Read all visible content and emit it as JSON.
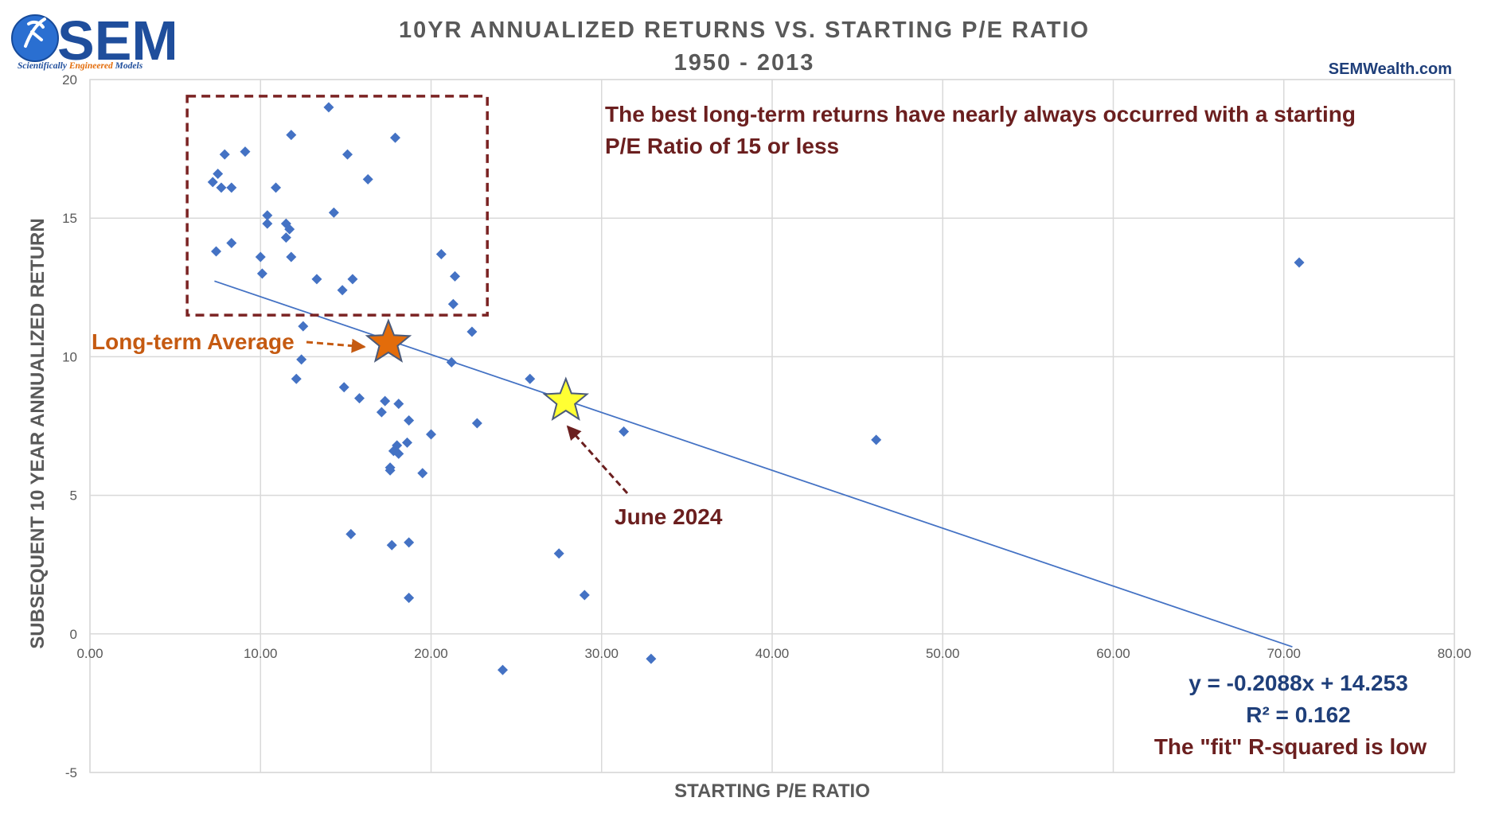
{
  "logo": {
    "brand": "SEM",
    "tagline_1": "Scientifically ",
    "tagline_2": "Engineered",
    "tagline_3": " Models"
  },
  "website": "SEMWealth.com",
  "colors": {
    "points": "#4472c4",
    "trendline": "#4472c4",
    "box": "#7b2323",
    "annotation_dark": "#6b1f1f",
    "annotation_orange": "#c55a11",
    "equation": "#1f3f7a",
    "star_orange": "#e36c0a",
    "star_yellow": "#ffff33",
    "grid": "#d9d9d9"
  },
  "chart_data": {
    "type": "scatter",
    "title": "10YR ANNUALIZED RETURNS VS. STARTING P/E RATIO",
    "subtitle": "1950 - 2013",
    "xlabel": "STARTING P/E RATIO",
    "ylabel": "SUBSEQUENT 10 YEAR ANNUALIZED RETURN",
    "xlim": [
      0,
      80
    ],
    "ylim": [
      -5,
      20
    ],
    "x_ticks": [
      0,
      10,
      20,
      30,
      40,
      50,
      60,
      70,
      80
    ],
    "x_tick_labels": [
      "0.00",
      "10.00",
      "20.00",
      "30.00",
      "40.00",
      "50.00",
      "60.00",
      "70.00",
      "80.00"
    ],
    "y_ticks": [
      -5,
      0,
      5,
      10,
      15,
      20
    ],
    "y_tick_labels": [
      "-5",
      "0",
      "5",
      "10",
      "15",
      "20"
    ],
    "grid": true,
    "points": [
      {
        "x": 7.2,
        "y": 16.3
      },
      {
        "x": 7.5,
        "y": 16.6
      },
      {
        "x": 7.7,
        "y": 16.1
      },
      {
        "x": 7.9,
        "y": 17.3
      },
      {
        "x": 8.3,
        "y": 16.1
      },
      {
        "x": 9.1,
        "y": 17.4
      },
      {
        "x": 7.4,
        "y": 13.8
      },
      {
        "x": 8.3,
        "y": 14.1
      },
      {
        "x": 10.0,
        "y": 13.6
      },
      {
        "x": 10.1,
        "y": 13.0
      },
      {
        "x": 10.4,
        "y": 15.1
      },
      {
        "x": 10.4,
        "y": 14.8
      },
      {
        "x": 10.9,
        "y": 16.1
      },
      {
        "x": 11.5,
        "y": 14.8
      },
      {
        "x": 11.7,
        "y": 14.6
      },
      {
        "x": 11.5,
        "y": 14.3
      },
      {
        "x": 11.8,
        "y": 13.6
      },
      {
        "x": 11.8,
        "y": 18.0
      },
      {
        "x": 13.3,
        "y": 12.8
      },
      {
        "x": 14.0,
        "y": 19.0
      },
      {
        "x": 14.3,
        "y": 15.2
      },
      {
        "x": 15.1,
        "y": 17.3
      },
      {
        "x": 15.4,
        "y": 12.8
      },
      {
        "x": 14.8,
        "y": 12.4
      },
      {
        "x": 16.3,
        "y": 16.4
      },
      {
        "x": 17.9,
        "y": 17.9
      },
      {
        "x": 20.6,
        "y": 13.7
      },
      {
        "x": 21.4,
        "y": 12.9
      },
      {
        "x": 21.3,
        "y": 11.9
      },
      {
        "x": 22.4,
        "y": 10.9
      },
      {
        "x": 12.5,
        "y": 11.1
      },
      {
        "x": 12.4,
        "y": 9.9
      },
      {
        "x": 12.1,
        "y": 9.2
      },
      {
        "x": 14.9,
        "y": 8.9
      },
      {
        "x": 15.8,
        "y": 8.5
      },
      {
        "x": 17.3,
        "y": 8.4
      },
      {
        "x": 17.1,
        "y": 8.0
      },
      {
        "x": 18.1,
        "y": 8.3
      },
      {
        "x": 18.7,
        "y": 7.7
      },
      {
        "x": 21.2,
        "y": 9.8
      },
      {
        "x": 22.7,
        "y": 7.6
      },
      {
        "x": 20.0,
        "y": 7.2
      },
      {
        "x": 18.6,
        "y": 6.9
      },
      {
        "x": 18.0,
        "y": 6.8
      },
      {
        "x": 17.8,
        "y": 6.6
      },
      {
        "x": 18.1,
        "y": 6.5
      },
      {
        "x": 17.6,
        "y": 5.9
      },
      {
        "x": 17.6,
        "y": 6.0
      },
      {
        "x": 19.5,
        "y": 5.8
      },
      {
        "x": 15.3,
        "y": 3.6
      },
      {
        "x": 17.7,
        "y": 3.2
      },
      {
        "x": 18.7,
        "y": 3.3
      },
      {
        "x": 18.7,
        "y": 1.3
      },
      {
        "x": 25.8,
        "y": 9.2
      },
      {
        "x": 27.5,
        "y": 2.9
      },
      {
        "x": 29.0,
        "y": 1.4
      },
      {
        "x": 31.3,
        "y": 7.3
      },
      {
        "x": 32.9,
        "y": -0.9
      },
      {
        "x": 24.2,
        "y": -1.3
      },
      {
        "x": 46.1,
        "y": 7.0
      },
      {
        "x": 70.9,
        "y": 13.4
      }
    ],
    "trendline": {
      "slope": -0.2088,
      "intercept": 14.253,
      "x_start": 7.3,
      "x_end": 70.5
    },
    "highlight_box": {
      "x0": 5.7,
      "x1": 23.3,
      "y0": 11.5,
      "y1": 19.4
    },
    "markers": [
      {
        "name": "Long-term Average",
        "x": 17.5,
        "y": 10.5
      },
      {
        "name": "June 2024",
        "x": 27.9,
        "y": 8.4
      }
    ]
  },
  "annotations": {
    "box_note_line1": "The best long-term returns have nearly always occurred with a starting",
    "box_note_line2": "P/E Ratio of 15 or less",
    "long_term_average": "Long-term Average",
    "june_2024": "June 2024",
    "equation": "y = -0.2088x + 14.253",
    "r_squared": "R² = 0.162",
    "fit_note": "The \"fit\" R-squared is low"
  }
}
